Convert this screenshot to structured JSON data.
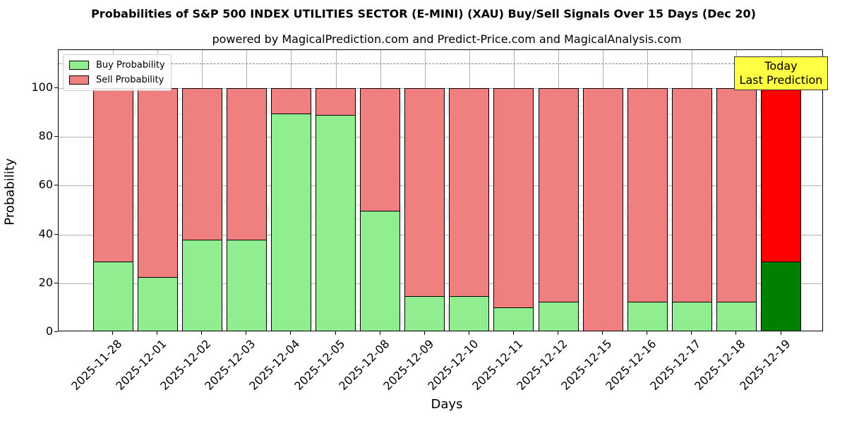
{
  "chart_data": {
    "type": "bar",
    "stacked": true,
    "title": "Probabilities of S&P 500 INDEX UTILITIES SECTOR (E-MINI) (XAU) Buy/Sell Signals Over 15 Days (Dec 20)",
    "subtitle": "powered by MagicalPrediction.com and Predict-Price.com and MagicalAnalysis.com",
    "xlabel": "Days",
    "ylabel": "Probability",
    "ylim": [
      0,
      115
    ],
    "yticks": [
      "0",
      "20",
      "40",
      "60",
      "80",
      "100"
    ],
    "grid": true,
    "legend_position": "upper left",
    "categories": [
      "2025-11-28",
      "2025-12-01",
      "2025-12-02",
      "2025-12-03",
      "2025-12-04",
      "2025-12-05",
      "2025-12-08",
      "2025-12-09",
      "2025-12-10",
      "2025-12-11",
      "2025-12-12",
      "2025-12-15",
      "2025-12-16",
      "2025-12-17",
      "2025-12-18",
      "2025-12-19"
    ],
    "series": [
      {
        "name": "Buy Probability",
        "color": "#90ee90",
        "values": [
          29.0,
          22.5,
          38.0,
          38.0,
          89.7,
          89.1,
          49.7,
          14.7,
          14.7,
          10.0,
          12.5,
          0.0,
          12.5,
          12.5,
          12.5,
          29.0
        ]
      },
      {
        "name": "Sell Probability",
        "color": "#f08080",
        "values": [
          71.0,
          77.5,
          62.0,
          62.0,
          10.3,
          10.9,
          50.3,
          85.3,
          85.3,
          90.0,
          87.5,
          100.0,
          87.5,
          87.5,
          87.5,
          71.0
        ]
      }
    ],
    "highlight": {
      "index": 15,
      "buy_color": "#008000",
      "sell_color": "#ff0000"
    },
    "reference_line": {
      "y": 110,
      "style": "dashed",
      "color": "#808080"
    },
    "annotation": {
      "line1": "Today",
      "line2": "Last Prediction",
      "background": "#ffff44"
    },
    "watermarks": [
      "MagicalAnalysis.com",
      "MagicalPrediction.com"
    ]
  }
}
